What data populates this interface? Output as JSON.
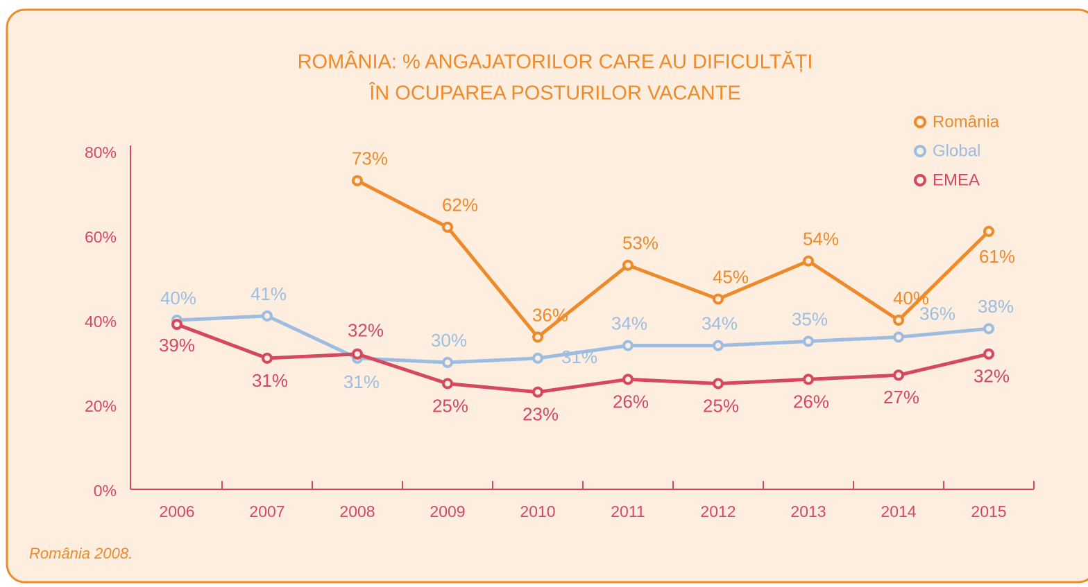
{
  "chart_data": {
    "type": "line",
    "title": [
      "ROMÂNIA: % ANGAJATORILOR CARE AU DIFICULTĂȚI",
      "ÎN OCUPAREA POSTURILOR VACANTE"
    ],
    "note": "România   2008.",
    "categories": [
      "2006",
      "2007",
      "2008",
      "2009",
      "2010",
      "2011",
      "2012",
      "2013",
      "2014",
      "2015"
    ],
    "series": [
      {
        "name": "România",
        "color": "#ee8a2a",
        "values": [
          null,
          null,
          73,
          62,
          36,
          53,
          45,
          54,
          40,
          61
        ],
        "value_labels": [
          null,
          null,
          "73%",
          "62%",
          "36%",
          "53%",
          "45%",
          "54%",
          "40%",
          "61%"
        ]
      },
      {
        "name": "Global",
        "color": "#9dbde0",
        "values": [
          40,
          41,
          31,
          30,
          31,
          34,
          34,
          35,
          36,
          38
        ],
        "value_labels": [
          "40%",
          "41%",
          "31%",
          "30%",
          "31%",
          "34%",
          "34%",
          "35%",
          "36%",
          "38%"
        ]
      },
      {
        "name": "EMEA",
        "color": "#d5485e",
        "values": [
          39,
          31,
          32,
          25,
          23,
          26,
          25,
          26,
          27,
          32
        ],
        "value_labels": [
          "39%",
          "31%",
          "32%",
          "25%",
          "23%",
          "26%",
          "25%",
          "26%",
          "27%",
          "32%"
        ]
      }
    ],
    "ylim": [
      0,
      80
    ],
    "yticks": [
      {
        "value": 0,
        "label": "0%"
      },
      {
        "value": 20,
        "label": "20%"
      },
      {
        "value": 40,
        "label": "40%"
      },
      {
        "value": 60,
        "label": "60%"
      },
      {
        "value": 80,
        "label": "80%"
      }
    ],
    "grid": false,
    "legend": "top-right"
  }
}
